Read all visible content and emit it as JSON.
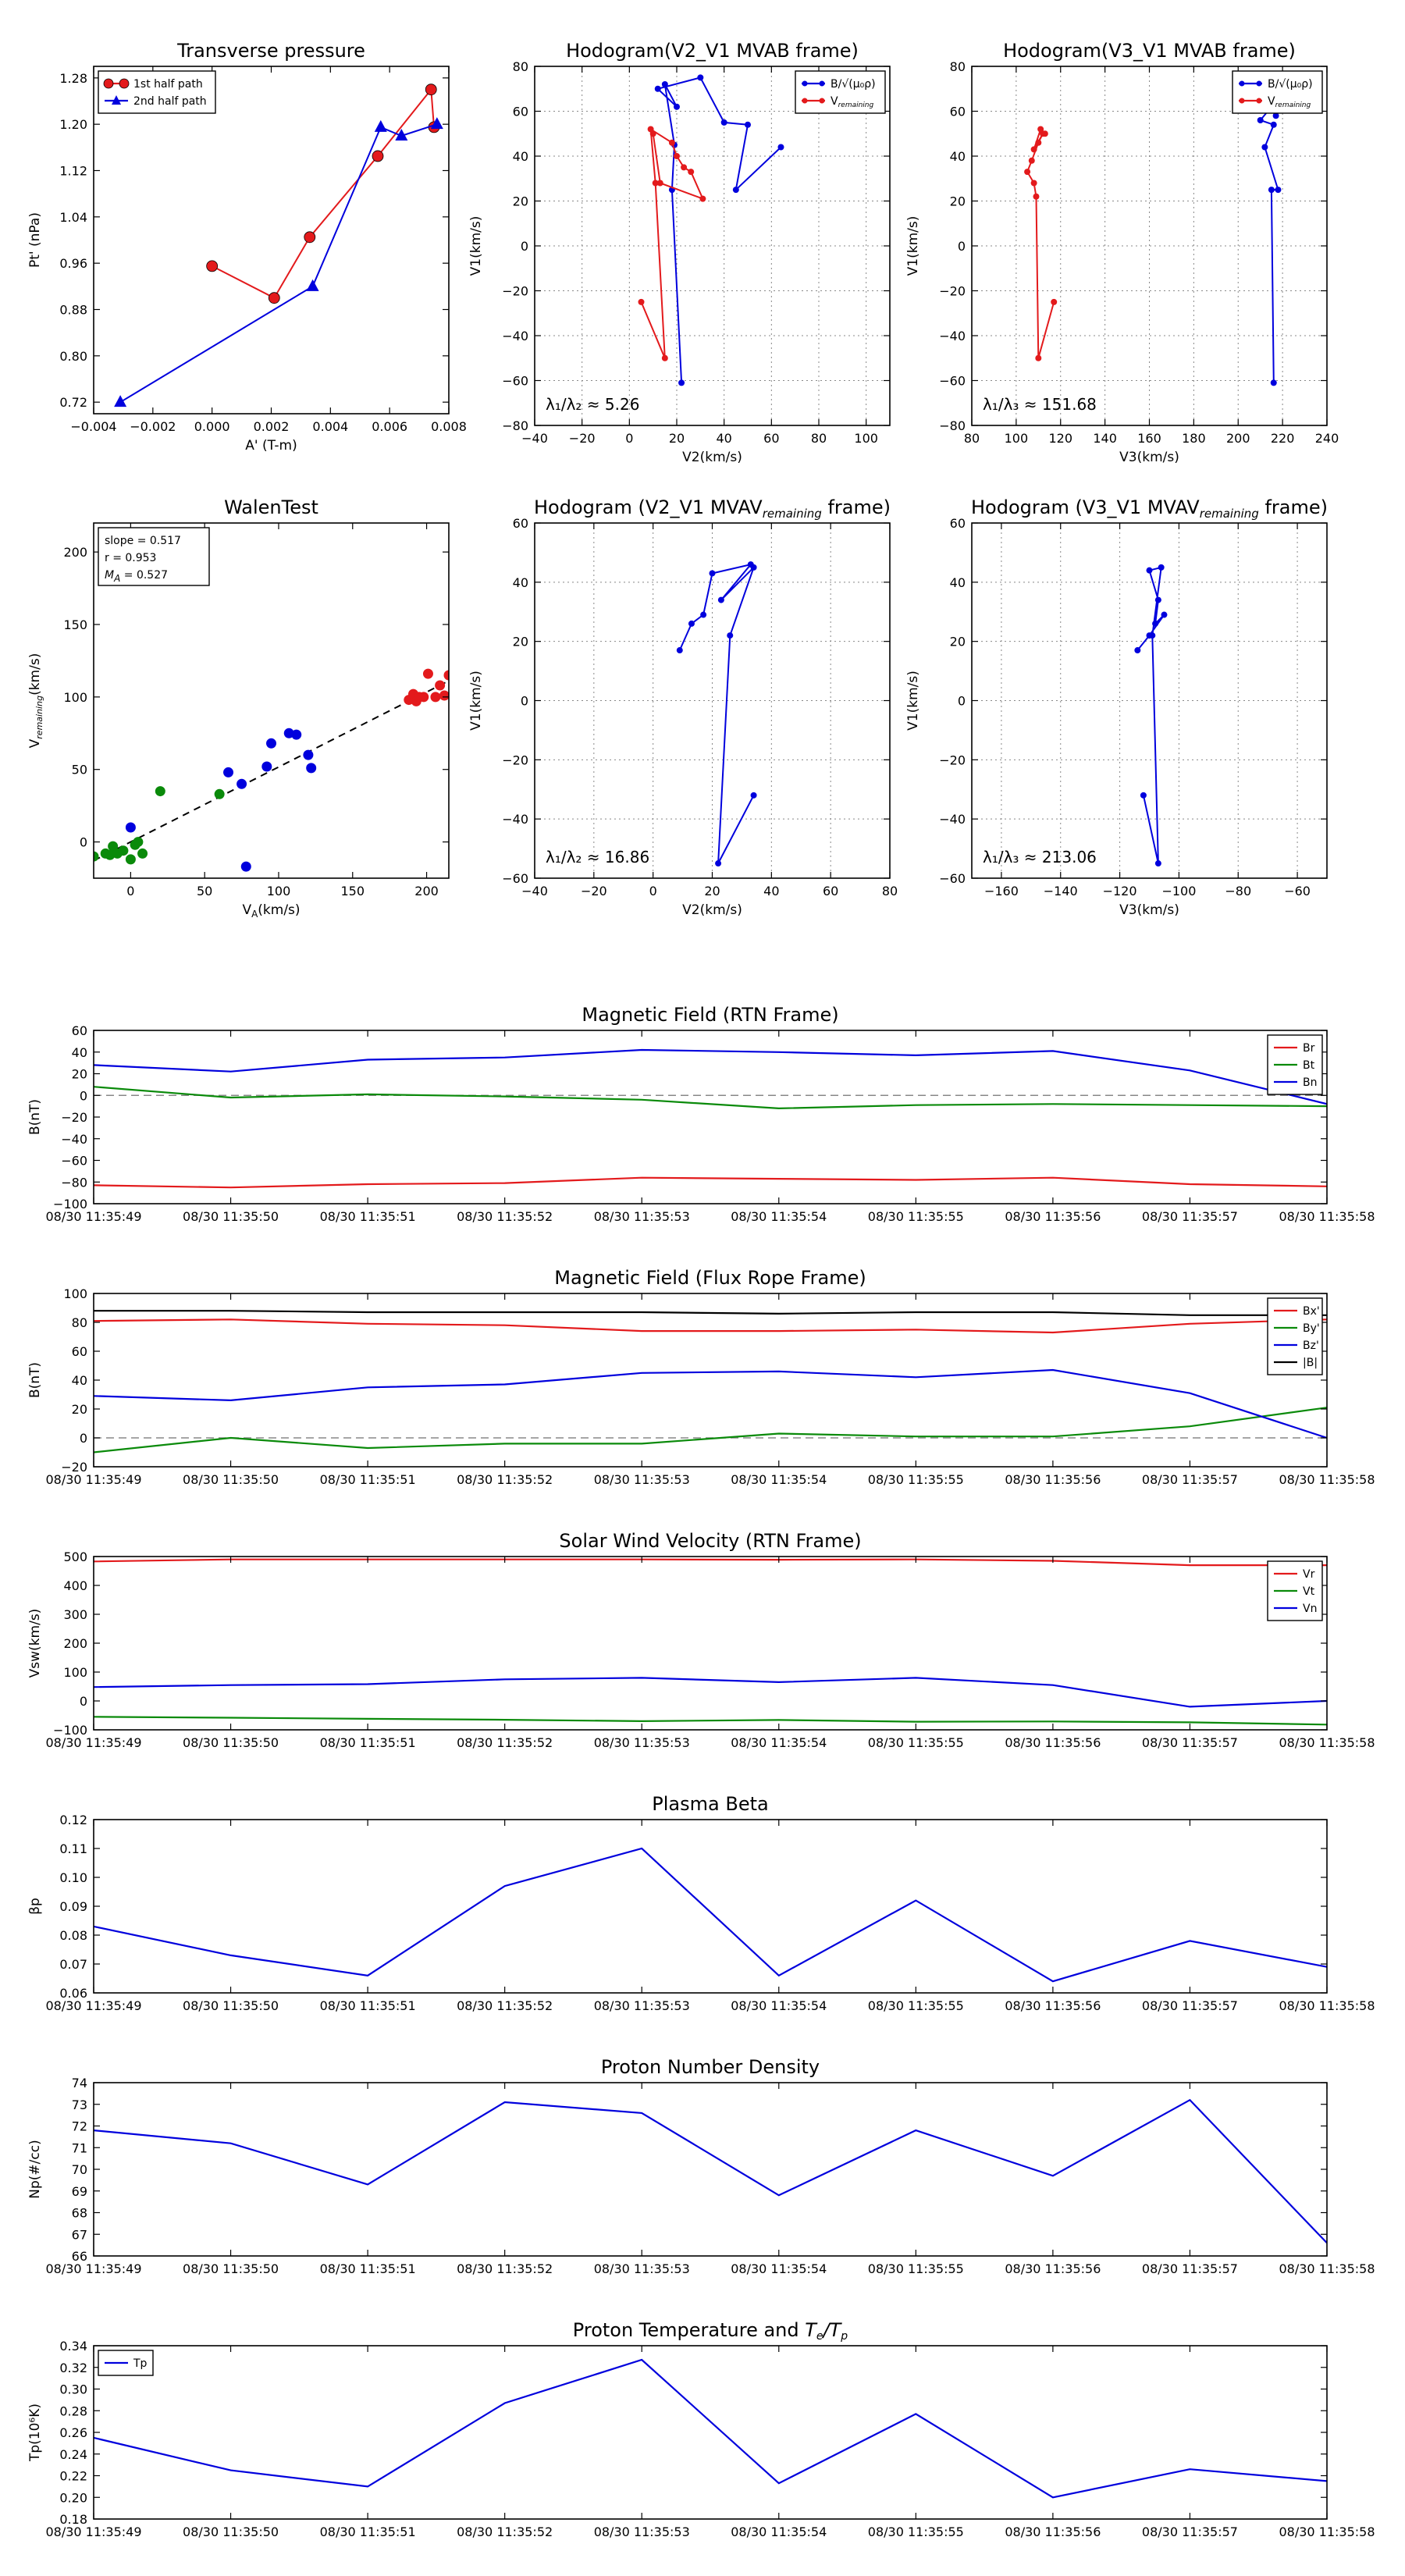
{
  "chart_data": [
    {
      "id": "tp",
      "type": "line",
      "title": "Transverse pressure",
      "xlabel": "A' (T-m)",
      "ylabel": "Pt' (nPa)",
      "xlim": [
        -0.004,
        0.008
      ],
      "ylim": [
        0.7,
        1.3
      ],
      "xticks": [
        -0.004,
        -0.002,
        0.0,
        0.002,
        0.004,
        0.006,
        0.008
      ],
      "xtick_labels": [
        "−0.004",
        "−0.002",
        "0.000",
        "0.002",
        "0.004",
        "0.006",
        "0.008"
      ],
      "yticks": [
        0.72,
        0.8,
        0.88,
        0.96,
        1.04,
        1.12,
        1.2,
        1.28
      ],
      "ytick_labels": [
        "0.72",
        "0.80",
        "0.88",
        "0.96",
        "1.04",
        "1.12",
        "1.20",
        "1.28"
      ],
      "grid": false,
      "legend": "top-left",
      "series": [
        {
          "name": "1st half path",
          "color": "#e31a1c",
          "marker": "circle",
          "x": [
            0.0,
            0.0021,
            0.0033,
            0.0056,
            0.0074,
            0.0075
          ],
          "y": [
            0.955,
            0.9,
            1.005,
            1.145,
            1.26,
            1.195
          ]
        },
        {
          "name": "2nd half path",
          "color": "#0000dd",
          "marker": "triangle",
          "x": [
            -0.0031,
            0.0034,
            0.0057,
            0.0064,
            0.0076
          ],
          "y": [
            0.72,
            0.92,
            1.195,
            1.18,
            1.2
          ]
        }
      ]
    },
    {
      "id": "h1",
      "type": "line",
      "title": "Hodogram(V2_V1 MVAB frame)",
      "xlabel": "V2(km/s)",
      "ylabel": "V1(km/s)",
      "xlim": [
        -40,
        110
      ],
      "ylim": [
        -80,
        80
      ],
      "xticks": [
        -40,
        -20,
        0,
        20,
        40,
        60,
        80,
        100
      ],
      "xtick_labels": [
        "−40",
        "−20",
        "0",
        "20",
        "40",
        "60",
        "80",
        "100"
      ],
      "yticks": [
        -80,
        -60,
        -40,
        -20,
        0,
        20,
        40,
        60,
        80
      ],
      "ytick_labels": [
        "−80",
        "−60",
        "−40",
        "−20",
        "0",
        "20",
        "40",
        "60",
        "80"
      ],
      "grid": true,
      "legend": "top-right",
      "annotation": "λ₁/λ₂ ≈ 5.26",
      "series": [
        {
          "name": "B/√(μ₀ρ)",
          "color": "#0000dd",
          "x": [
            22,
            18,
            19,
            15,
            20,
            12,
            30,
            40,
            50,
            45,
            64
          ],
          "y": [
            -61,
            25,
            45,
            72,
            62,
            70,
            75,
            55,
            54,
            25,
            44
          ]
        },
        {
          "name": "V_remaining",
          "color": "#e31a1c",
          "x": [
            5,
            15,
            11,
            9,
            18,
            20,
            23,
            26,
            31,
            13,
            10
          ],
          "y": [
            -25,
            -50,
            28,
            52,
            46,
            40,
            35,
            33,
            21,
            28,
            50
          ]
        }
      ]
    },
    {
      "id": "h2",
      "type": "line",
      "title": "Hodogram(V3_V1 MVAB frame)",
      "xlabel": "V3(km/s)",
      "ylabel": "V1(km/s)",
      "xlim": [
        80,
        240
      ],
      "ylim": [
        -80,
        80
      ],
      "xticks": [
        80,
        100,
        120,
        140,
        160,
        180,
        200,
        220,
        240
      ],
      "xtick_labels": [
        "80",
        "100",
        "120",
        "140",
        "160",
        "180",
        "200",
        "220",
        "240"
      ],
      "yticks": [
        -80,
        -60,
        -40,
        -20,
        0,
        20,
        40,
        60,
        80
      ],
      "ytick_labels": [
        "−80",
        "−60",
        "−40",
        "−20",
        "0",
        "20",
        "40",
        "60",
        "80"
      ],
      "grid": true,
      "legend": "top-right",
      "annotation": "λ₁/λ₃ ≈ 151.68",
      "series": [
        {
          "name": "B/√(μ₀ρ)",
          "color": "#0000dd",
          "x": [
            216,
            215,
            218,
            212,
            216,
            210,
            215,
            217
          ],
          "y": [
            -61,
            25,
            25,
            44,
            54,
            56,
            62,
            58
          ]
        },
        {
          "name": "V_remaining",
          "color": "#e31a1c",
          "x": [
            117,
            110,
            109,
            108,
            105,
            107,
            110,
            112,
            108,
            111,
            113
          ],
          "y": [
            -25,
            -50,
            22,
            28,
            33,
            38,
            46,
            50,
            43,
            52,
            50
          ]
        }
      ]
    },
    {
      "id": "walen",
      "type": "scatter",
      "title": "WalenTest",
      "xlabel": "V_A(km/s)",
      "ylabel": "V_remaining(km/s)",
      "xlim": [
        -25,
        215
      ],
      "ylim": [
        -25,
        220
      ],
      "xticks": [
        0,
        50,
        100,
        150,
        200
      ],
      "xtick_labels": [
        "0",
        "50",
        "100",
        "150",
        "200"
      ],
      "yticks": [
        0,
        50,
        100,
        150,
        200
      ],
      "ytick_labels": [
        "0",
        "50",
        "100",
        "150",
        "200"
      ],
      "grid": false,
      "stats": [
        "slope = 0.517",
        "r = 0.953",
        "M_A = 0.527"
      ],
      "fit": {
        "slope": 0.517,
        "intercept": 0,
        "color": "#000000",
        "style": "dashed"
      },
      "groups": [
        {
          "color": "#0a8a0a",
          "x": [
            -25,
            -17,
            -14,
            -12,
            -9,
            -5,
            0,
            3,
            5,
            8,
            20,
            60
          ],
          "y": [
            -10,
            -8,
            -9,
            -3,
            -8,
            -6,
            -12,
            -2,
            0,
            -8,
            35,
            33
          ]
        },
        {
          "color": "#0000dd",
          "x": [
            0,
            66,
            75,
            78,
            92,
            95,
            107,
            112,
            120,
            122
          ],
          "y": [
            10,
            48,
            40,
            -17,
            52,
            68,
            75,
            74,
            60,
            51
          ]
        },
        {
          "color": "#e31a1c",
          "x": [
            188,
            191,
            193,
            195,
            198,
            201,
            206,
            209,
            212,
            215
          ],
          "y": [
            98,
            102,
            97,
            100,
            100,
            116,
            100,
            108,
            101,
            115
          ]
        }
      ]
    },
    {
      "id": "h3",
      "type": "line",
      "title": "Hodogram (V2_V1 MVAV_remaining frame)",
      "xlabel": "V2(km/s)",
      "ylabel": "V1(km/s)",
      "xlim": [
        -40,
        80
      ],
      "ylim": [
        -60,
        60
      ],
      "xticks": [
        -40,
        -20,
        0,
        20,
        40,
        60,
        80
      ],
      "xtick_labels": [
        "−40",
        "−20",
        "0",
        "20",
        "40",
        "60",
        "80"
      ],
      "yticks": [
        -60,
        -40,
        -20,
        0,
        20,
        40,
        60
      ],
      "ytick_labels": [
        "−60",
        "−40",
        "−20",
        "0",
        "20",
        "40",
        "60"
      ],
      "grid": true,
      "annotation": "λ₁/λ₂ ≈ 16.86",
      "series": [
        {
          "name": "",
          "color": "#0000dd",
          "x": [
            34,
            22,
            26,
            34,
            23,
            33,
            20,
            17,
            13,
            9
          ],
          "y": [
            -32,
            -55,
            22,
            45,
            34,
            46,
            43,
            29,
            26,
            17
          ]
        }
      ]
    },
    {
      "id": "h4",
      "type": "line",
      "title": "Hodogram (V3_V1 MVAV_remaining frame)",
      "xlabel": "V3(km/s)",
      "ylabel": "V1(km/s)",
      "xlim": [
        -170,
        -50
      ],
      "ylim": [
        -60,
        60
      ],
      "xticks": [
        -160,
        -140,
        -120,
        -100,
        -80,
        -60
      ],
      "xtick_labels": [
        "−160",
        "−140",
        "−120",
        "−100",
        "−80",
        "−60"
      ],
      "yticks": [
        -60,
        -40,
        -20,
        0,
        20,
        40,
        60
      ],
      "ytick_labels": [
        "−60",
        "−40",
        "−20",
        "0",
        "20",
        "40",
        "60"
      ],
      "grid": true,
      "annotation": "λ₁/λ₃ ≈ 213.06",
      "series": [
        {
          "name": "",
          "color": "#0000dd",
          "x": [
            -112,
            -107,
            -109,
            -106,
            -110,
            -107,
            -108,
            -105,
            -110,
            -114
          ],
          "y": [
            -32,
            -55,
            22,
            45,
            44,
            34,
            26,
            29,
            22,
            17
          ]
        }
      ]
    },
    {
      "id": "mf_rtn",
      "type": "line",
      "title": "Magnetic Field (RTN Frame)",
      "ylabel": "B(nT)",
      "ylim": [
        -100,
        60
      ],
      "yticks": [
        -100,
        -80,
        -60,
        -40,
        -20,
        0,
        20,
        40,
        60
      ],
      "ytick_labels": [
        "−100",
        "−80",
        "−60",
        "−40",
        "−20",
        "0",
        "20",
        "40",
        "60"
      ],
      "zero_line": true,
      "legend": "top-right",
      "series": [
        {
          "name": "Br",
          "color": "#e31a1c",
          "values": [
            -83,
            -85,
            -82,
            -81,
            -76,
            -77,
            -78,
            -76,
            -82,
            -84
          ]
        },
        {
          "name": "Bt",
          "color": "#0a8a0a",
          "values": [
            8,
            -2,
            1,
            -1,
            -4,
            -12,
            -9,
            -8,
            -9,
            -10
          ]
        },
        {
          "name": "Bn",
          "color": "#0000dd",
          "values": [
            28,
            22,
            33,
            35,
            42,
            40,
            37,
            41,
            23,
            -8
          ]
        }
      ]
    },
    {
      "id": "mf_fr",
      "type": "line",
      "title": "Magnetic Field (Flux Rope Frame)",
      "ylabel": "B(nT)",
      "ylim": [
        -20,
        100
      ],
      "yticks": [
        -20,
        0,
        20,
        40,
        60,
        80,
        100
      ],
      "ytick_labels": [
        "−20",
        "0",
        "20",
        "40",
        "60",
        "80",
        "100"
      ],
      "zero_line": true,
      "legend": "top-right",
      "series": [
        {
          "name": "Bx'",
          "color": "#e31a1c",
          "values": [
            81,
            82,
            79,
            78,
            74,
            74,
            75,
            73,
            79,
            82
          ]
        },
        {
          "name": "By'",
          "color": "#0a8a0a",
          "values": [
            -10,
            0,
            -7,
            -4,
            -4,
            3,
            1,
            1,
            8,
            21
          ]
        },
        {
          "name": "Bz'",
          "color": "#0000dd",
          "values": [
            29,
            26,
            35,
            37,
            45,
            46,
            42,
            47,
            31,
            0
          ]
        },
        {
          "name": "|B|",
          "color": "#000000",
          "values": [
            88,
            88,
            87,
            87,
            87,
            86,
            87,
            87,
            85,
            85
          ]
        }
      ]
    },
    {
      "id": "sw",
      "type": "line",
      "title": "Solar Wind Velocity (RTN Frame)",
      "ylabel": "Vsw(km/s)",
      "ylim": [
        -100,
        500
      ],
      "yticks": [
        -100,
        0,
        100,
        200,
        300,
        400,
        500
      ],
      "ytick_labels": [
        "−100",
        "0",
        "100",
        "200",
        "300",
        "400",
        "500"
      ],
      "legend": "top-right",
      "series": [
        {
          "name": "Vr",
          "color": "#e31a1c",
          "values": [
            483,
            490,
            490,
            490,
            490,
            489,
            490,
            485,
            470,
            470
          ]
        },
        {
          "name": "Vt",
          "color": "#0a8a0a",
          "values": [
            -55,
            -58,
            -62,
            -65,
            -70,
            -66,
            -72,
            -71,
            -74,
            -82
          ]
        },
        {
          "name": "Vn",
          "color": "#0000dd",
          "values": [
            48,
            55,
            58,
            75,
            80,
            65,
            80,
            55,
            -20,
            0
          ]
        }
      ]
    },
    {
      "id": "beta",
      "type": "line",
      "title": "Plasma Beta",
      "ylabel": "βp",
      "ylim": [
        0.06,
        0.12
      ],
      "yticks": [
        0.06,
        0.07,
        0.08,
        0.09,
        0.1,
        0.11,
        0.12
      ],
      "ytick_labels": [
        "0.06",
        "0.07",
        "0.08",
        "0.09",
        "0.10",
        "0.11",
        "0.12"
      ],
      "series": [
        {
          "name": "",
          "color": "#0000dd",
          "values": [
            0.083,
            0.073,
            0.066,
            0.097,
            0.11,
            0.066,
            0.092,
            0.064,
            0.078,
            0.069
          ]
        }
      ]
    },
    {
      "id": "np",
      "type": "line",
      "title": "Proton Number Density",
      "ylabel": "Np(#/cc)",
      "ylim": [
        66,
        74
      ],
      "yticks": [
        66,
        67,
        68,
        69,
        70,
        71,
        72,
        73,
        74
      ],
      "ytick_labels": [
        "66",
        "67",
        "68",
        "69",
        "70",
        "71",
        "72",
        "73",
        "74"
      ],
      "series": [
        {
          "name": "",
          "color": "#0000dd",
          "values": [
            71.8,
            71.2,
            69.3,
            73.1,
            72.6,
            68.8,
            71.8,
            69.7,
            73.2,
            66.6
          ]
        }
      ]
    },
    {
      "id": "tp_temp",
      "type": "line",
      "title": "Proton Temperature and Te/Tp",
      "ylabel": "Tp(10⁶K)",
      "ylim": [
        0.18,
        0.34
      ],
      "yticks": [
        0.18,
        0.2,
        0.22,
        0.24,
        0.26,
        0.28,
        0.3,
        0.32,
        0.34
      ],
      "ytick_labels": [
        "0.18",
        "0.20",
        "0.22",
        "0.24",
        "0.26",
        "0.28",
        "0.30",
        "0.32",
        "0.34"
      ],
      "legend": "top-left",
      "series": [
        {
          "name": "Tp",
          "color": "#0000dd",
          "values": [
            0.255,
            0.225,
            0.21,
            0.287,
            0.327,
            0.213,
            0.277,
            0.2,
            0.226,
            0.215
          ]
        }
      ]
    }
  ],
  "time_labels": [
    "08/30 11:35:49",
    "08/30 11:35:50",
    "08/30 11:35:51",
    "08/30 11:35:52",
    "08/30 11:35:53",
    "08/30 11:35:54",
    "08/30 11:35:55",
    "08/30 11:35:56",
    "08/30 11:35:57",
    "08/30 11:35:58"
  ]
}
